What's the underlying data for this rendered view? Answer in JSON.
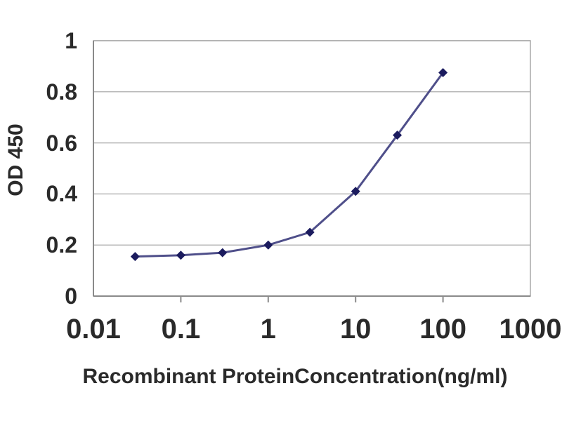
{
  "chart_data": {
    "type": "line",
    "title": "",
    "xlabel": "Recombinant ProteinConcentration(ng/ml)",
    "ylabel": "OD 450",
    "x_scale": "log10",
    "xlim": [
      0.01,
      1000
    ],
    "ylim": [
      0,
      1
    ],
    "x": [
      0.03,
      0.1,
      0.3,
      1,
      3,
      10,
      30,
      100
    ],
    "series": [
      {
        "name": "OD 450",
        "values": [
          0.155,
          0.16,
          0.17,
          0.2,
          0.25,
          0.41,
          0.63,
          0.875
        ]
      }
    ],
    "x_ticks": [
      0.01,
      0.1,
      1,
      10,
      100,
      1000
    ],
    "x_tick_labels": [
      "0.01",
      "0.1",
      "1",
      "10",
      "100",
      "1000"
    ],
    "y_ticks": [
      0,
      0.2,
      0.4,
      0.6,
      0.8,
      1
    ],
    "y_tick_labels": [
      "0",
      "0.2",
      "0.4",
      "0.6",
      "0.8",
      "1"
    ],
    "grid": "horizontal",
    "legend": "none",
    "marker": "diamond",
    "colors": {
      "line": "#4f4f8a",
      "marker": "#1b1b5e",
      "grid": "#b8b8b8",
      "axis": "#8a8a8a",
      "border": "#a8a8a8",
      "text": "#2a2a2a",
      "background": "#ffffff"
    }
  }
}
